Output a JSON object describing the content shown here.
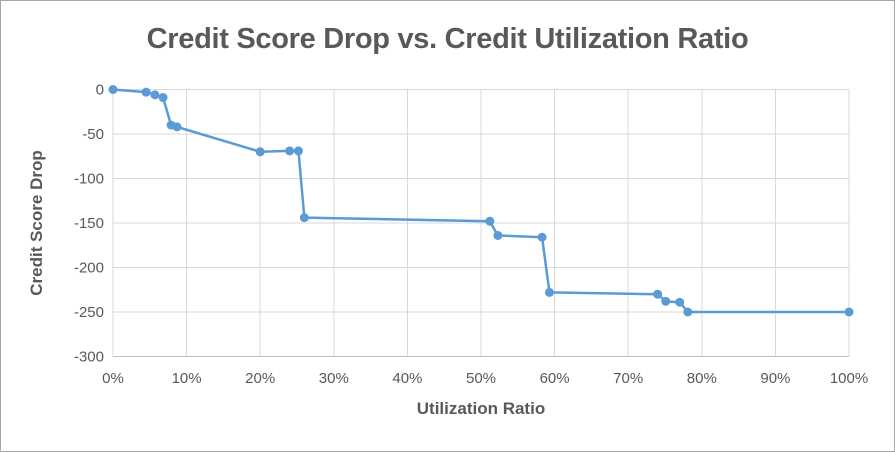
{
  "window": {
    "background": "#FFFFFF",
    "frame_border_color": "#A6A6A6"
  },
  "colors": {
    "series": "#5B9BD5",
    "gridline": "#D9D9D9",
    "axis_line": "#BFBFBF",
    "title_text": "#595959",
    "tick_text": "#595959",
    "axis_title_text": "#595959"
  },
  "chart_data": {
    "type": "line",
    "title": "Credit Score Drop vs. Credit Utilization Ratio",
    "xlabel": "Utilization Ratio",
    "ylabel": "Credit Score Drop",
    "xlim": [
      0,
      100
    ],
    "ylim": [
      -300,
      0
    ],
    "grid": true,
    "legend": false,
    "x_ticks": [
      0,
      10,
      20,
      30,
      40,
      50,
      60,
      70,
      80,
      90,
      100
    ],
    "x_tick_labels": [
      "0%",
      "10%",
      "20%",
      "30%",
      "40%",
      "50%",
      "60%",
      "70%",
      "80%",
      "90%",
      "100%"
    ],
    "y_ticks": [
      0,
      -50,
      -100,
      -150,
      -200,
      -250,
      -300
    ],
    "y_tick_labels": [
      "0",
      "-50",
      "-100",
      "-150",
      "-200",
      "-250",
      "-300"
    ],
    "series": [
      {
        "name": "Credit Score Drop",
        "color": "#5B9BD5",
        "marker": "circle",
        "points": [
          [
            0,
            0
          ],
          [
            4.5,
            -3
          ],
          [
            5.7,
            -6
          ],
          [
            6.8,
            -9
          ],
          [
            7.9,
            -40
          ],
          [
            8.7,
            -42
          ],
          [
            20,
            -70
          ],
          [
            24,
            -69
          ],
          [
            25.2,
            -69
          ],
          [
            26,
            -144
          ],
          [
            51.2,
            -148
          ],
          [
            52.3,
            -164
          ],
          [
            58.3,
            -166
          ],
          [
            59.3,
            -228
          ],
          [
            74,
            -230
          ],
          [
            75.1,
            -238
          ],
          [
            77,
            -239
          ],
          [
            78.1,
            -250
          ],
          [
            100,
            -250
          ]
        ]
      }
    ]
  }
}
